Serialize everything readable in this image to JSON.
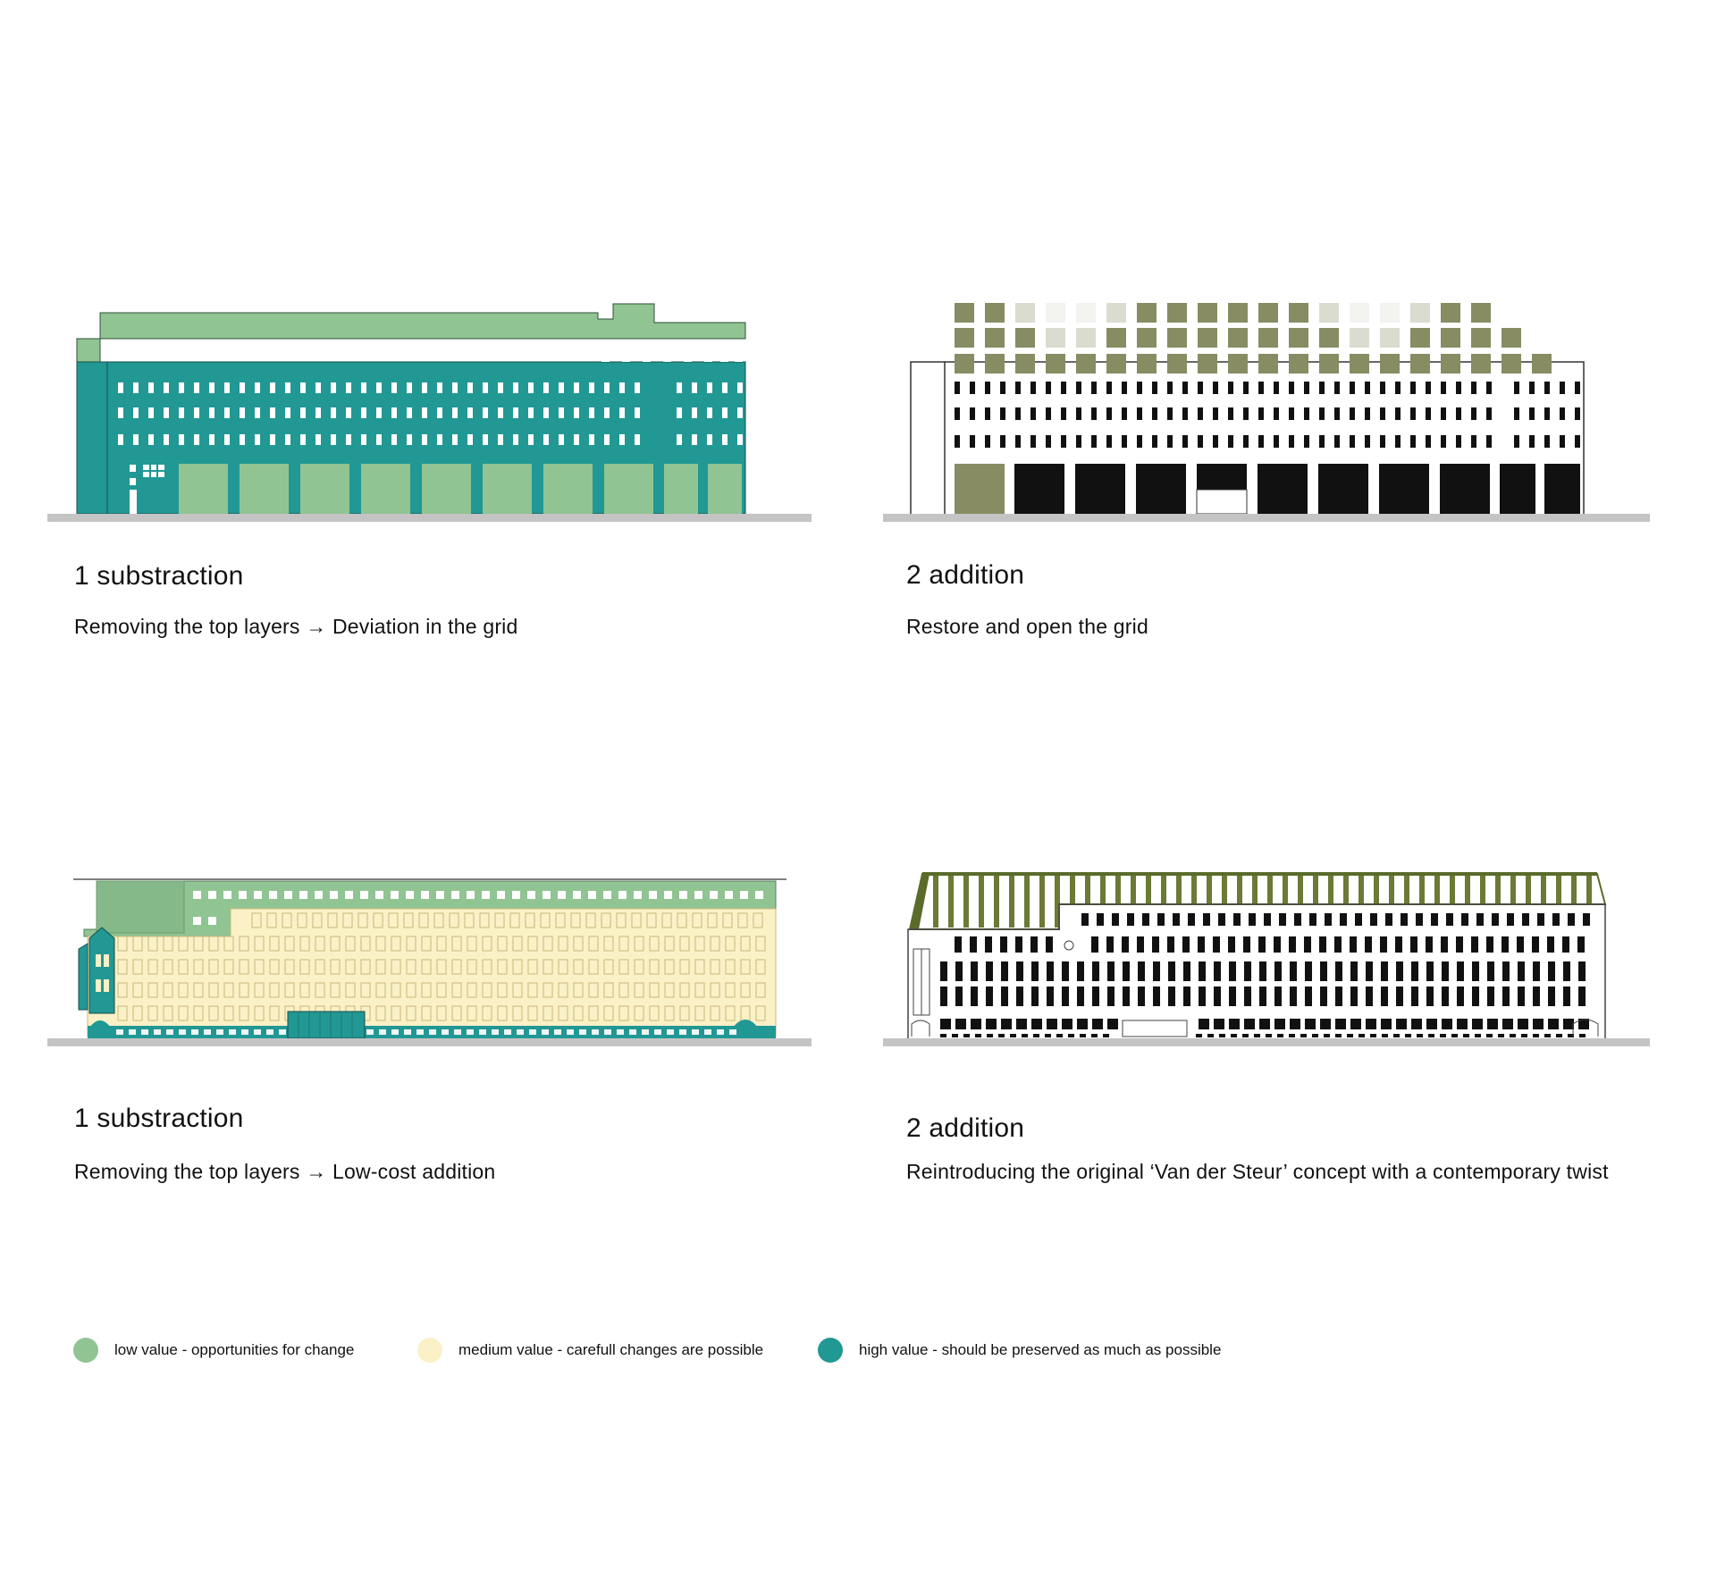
{
  "colors": {
    "low": "#90c493",
    "medium": "#faf1c7",
    "high": "#219894",
    "addition_olive": "#878c63",
    "ground": "#c4c4c4"
  },
  "panels": [
    {
      "title": "1 substraction",
      "caption": "Removing the top layers → Deviation in the grid"
    },
    {
      "title": "2 addition",
      "caption": "Restore and open the grid"
    },
    {
      "title": "1 substraction",
      "caption": "Removing the top layers → Low-cost addition"
    },
    {
      "title": "2 addition",
      "caption": "Reintroducing the original ‘Van der Steur’ concept with a contemporary twist"
    }
  ],
  "legend": [
    {
      "label": "low value - opportunities for change",
      "color": "#90c493"
    },
    {
      "label": "medium value - carefull changes are possible",
      "color": "#faf1c7"
    },
    {
      "label": "high value - should be preserved as much as possible",
      "color": "#219894"
    }
  ]
}
